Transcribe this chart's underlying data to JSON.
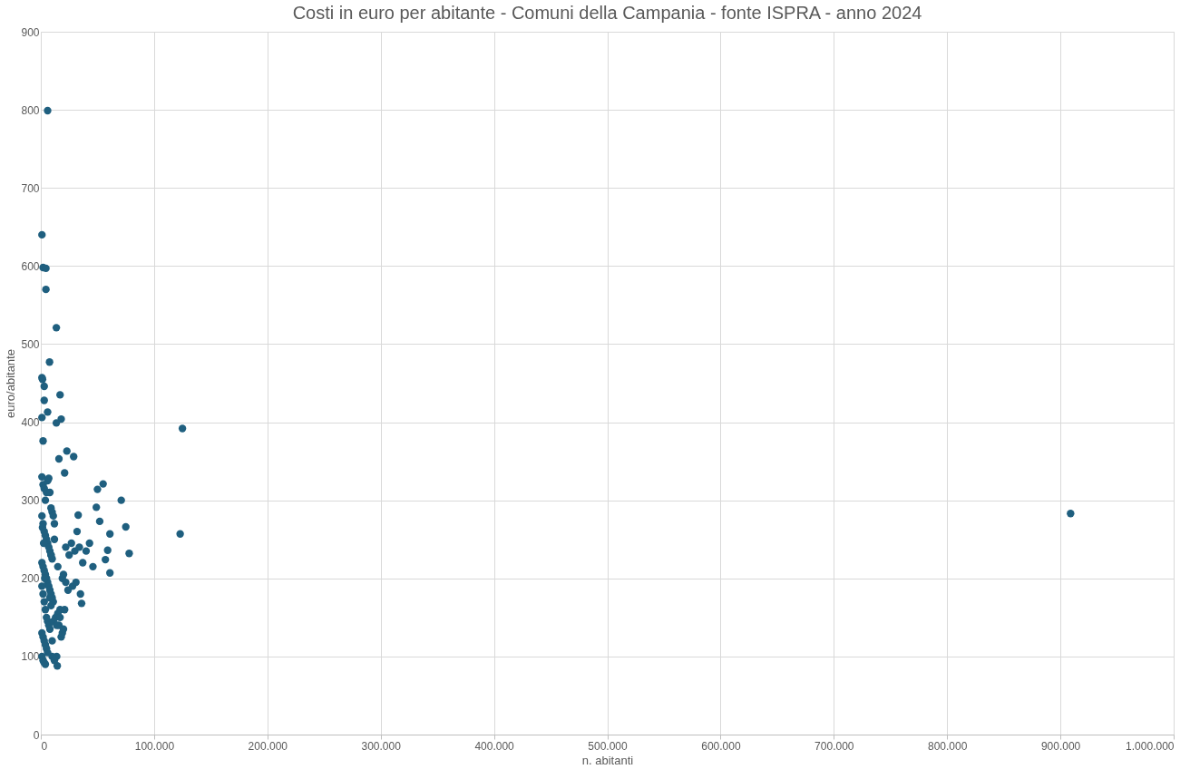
{
  "chart_data": {
    "type": "scatter",
    "title": "Costi in euro per abitante - Comuni della Campania - fonte ISPRA - anno 2024",
    "xlabel": "n. abitanti",
    "ylabel": "euro/abitante",
    "xlim": [
      0,
      1000000
    ],
    "xticks": [
      {
        "value": 0,
        "label": "0"
      },
      {
        "value": 100000,
        "label": "100.000"
      },
      {
        "value": 200000,
        "label": "200.000"
      },
      {
        "value": 300000,
        "label": "300.000"
      },
      {
        "value": 400000,
        "label": "400.000"
      },
      {
        "value": 500000,
        "label": "500.000"
      },
      {
        "value": 600000,
        "label": "600.000"
      },
      {
        "value": 700000,
        "label": "700.000"
      },
      {
        "value": 800000,
        "label": "800.000"
      },
      {
        "value": 900000,
        "label": "900.000"
      },
      {
        "value": 1000000,
        "label": "1.000.000"
      }
    ],
    "ylim": [
      0,
      900
    ],
    "yticks": [
      0,
      100,
      200,
      300,
      400,
      500,
      600,
      700,
      800,
      900
    ],
    "grid": true,
    "marker": "circle",
    "series": [
      {
        "color": "#1f5f7f",
        "x": [
          6000,
          1000,
          2000,
          4500,
          4500,
          13700,
          7700,
          1000,
          1500,
          17000,
          3000,
          3000,
          6000,
          1000,
          18000,
          13700,
          125000,
          2000,
          23000,
          29000,
          16000,
          21000,
          55000,
          50000,
          71000,
          49000,
          123000,
          909000,
          33000,
          75000,
          52000,
          61000,
          78000,
          59000,
          57000,
          61000,
          36000,
          18000,
          14000,
          14500,
          10000,
          1000,
          2000,
          3000,
          4000,
          5000,
          6000,
          7000,
          8000,
          9000,
          10000,
          11000,
          12000,
          1000,
          2000,
          3000,
          4000,
          5000,
          6000,
          7000,
          8000,
          9000,
          10000,
          1000,
          2000,
          3000,
          4000,
          5000,
          6000,
          7000,
          8000,
          9000,
          10000,
          11000,
          1000,
          2000,
          3000,
          4000,
          5000,
          6000,
          7000,
          8000,
          1000,
          2000,
          3000,
          4000,
          5000,
          6000,
          1000,
          2000,
          3000,
          4000,
          1500,
          2500,
          3500,
          9000,
          12000,
          15000,
          19000,
          22000,
          25000,
          27000,
          30000,
          32000,
          34000,
          37000,
          40000,
          43000,
          46000,
          28000,
          31000,
          35000,
          24000,
          20000,
          17000,
          15000,
          13000,
          11000,
          16000,
          19000,
          22000,
          8000,
          9000,
          10000,
          12000,
          14000,
          17000,
          20000,
          21000
        ],
        "values": [
          799,
          640,
          598,
          597,
          570,
          521,
          477,
          457,
          455,
          435,
          446,
          428,
          413,
          406,
          404,
          399,
          392,
          376,
          363,
          356,
          353,
          335,
          321,
          314,
          300,
          291,
          257,
          283,
          281,
          266,
          273,
          257,
          232,
          236,
          224,
          207,
          168,
          125,
          100,
          88,
          100,
          330,
          320,
          315,
          300,
          310,
          325,
          328,
          310,
          290,
          285,
          280,
          270,
          280,
          270,
          260,
          255,
          250,
          245,
          240,
          235,
          230,
          225,
          220,
          215,
          210,
          205,
          200,
          195,
          190,
          185,
          180,
          175,
          170,
          190,
          180,
          170,
          160,
          150,
          145,
          140,
          135,
          130,
          125,
          120,
          115,
          110,
          105,
          100,
          95,
          92,
          90,
          265,
          245,
          200,
          230,
          250,
          215,
          200,
          240,
          230,
          245,
          235,
          260,
          240,
          220,
          235,
          245,
          215,
          190,
          195,
          180,
          185,
          205,
          160,
          155,
          150,
          145,
          140,
          130,
          195,
          175,
          165,
          120,
          95,
          140,
          150,
          135,
          160
        ]
      }
    ]
  }
}
